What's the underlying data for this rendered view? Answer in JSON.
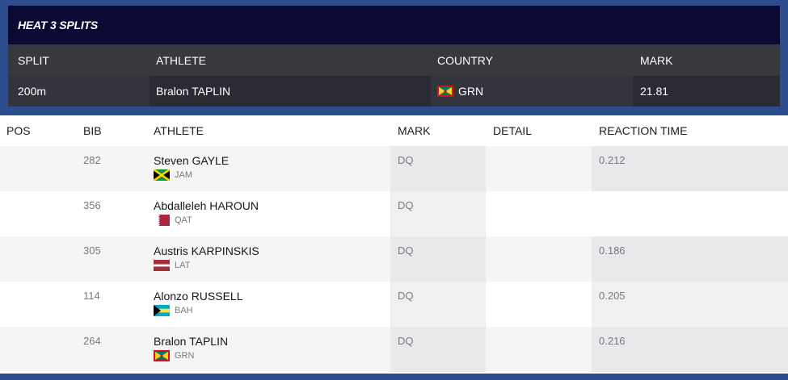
{
  "splits": {
    "title": "HEAT 3 SPLITS",
    "headers": {
      "split": "SPLIT",
      "athlete": "ATHLETE",
      "country": "COUNTRY",
      "mark": "MARK"
    },
    "row": {
      "split": "200m",
      "athlete": "Bralon TAPLIN",
      "country": "GRN",
      "flag_icon": "grenada-flag-icon",
      "mark": "21.81"
    }
  },
  "results": {
    "headers": {
      "pos": "POS",
      "bib": "BIB",
      "athlete": "ATHLETE",
      "mark": "MARK",
      "detail": "DETAIL",
      "reaction_time": "REACTION TIME"
    },
    "rows": [
      {
        "pos": "",
        "bib": "282",
        "name": "Steven GAYLE",
        "country": "JAM",
        "flag_icon": "jamaica-flag-icon",
        "mark": "DQ",
        "detail": "",
        "reaction_time": "0.212"
      },
      {
        "pos": "",
        "bib": "356",
        "name": "Abdalleleh HAROUN",
        "country": "QAT",
        "flag_icon": "qatar-flag-icon",
        "mark": "DQ",
        "detail": "",
        "reaction_time": ""
      },
      {
        "pos": "",
        "bib": "305",
        "name": "Austris KARPINSKIS",
        "country": "LAT",
        "flag_icon": "latvia-flag-icon",
        "mark": "DQ",
        "detail": "",
        "reaction_time": "0.186"
      },
      {
        "pos": "",
        "bib": "114",
        "name": "Alonzo RUSSELL",
        "country": "BAH",
        "flag_icon": "bahamas-flag-icon",
        "mark": "DQ",
        "detail": "",
        "reaction_time": "0.205"
      },
      {
        "pos": "",
        "bib": "264",
        "name": "Bralon TAPLIN",
        "country": "GRN",
        "flag_icon": "grenada-flag-icon",
        "mark": "DQ",
        "detail": "",
        "reaction_time": "0.216"
      }
    ]
  },
  "colors": {
    "frame": "#2e4d8e",
    "splits_title_bg": "#0a0a35",
    "splits_header_bg": "#38393f",
    "splits_row_bg": "#2b2c33"
  }
}
